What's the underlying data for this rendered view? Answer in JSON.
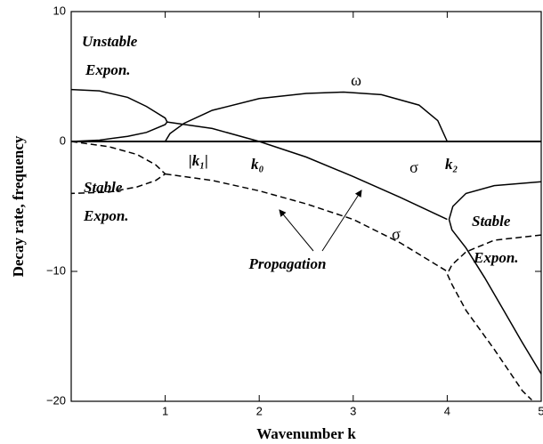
{
  "chart_data": {
    "type": "line",
    "xlabel": "Wavenumber k",
    "ylabel": "Decay rate, frequency",
    "xlim": [
      0,
      5
    ],
    "xticks": [
      1,
      2,
      3,
      4,
      5
    ],
    "ylim": [
      -20,
      10
    ],
    "yticks": [
      {
        "value": -20,
        "label": "−20"
      },
      {
        "value": -10,
        "label": "−10"
      },
      0,
      10
    ],
    "zero_line": true,
    "annotations": [
      "Unstable",
      "Expon.",
      "Stable",
      "Expon.",
      "Stable",
      "Expon.",
      "Propagation",
      "|k₁|",
      "k₀",
      "k₂",
      "ω",
      "σ",
      "σ"
    ],
    "series": [
      {
        "color": "#000000",
        "dashed": false,
        "x": [
          0,
          0.3,
          0.6,
          0.8,
          1.0,
          1.02,
          1.0,
          0.8,
          0.6,
          0.3,
          0
        ],
        "values": [
          0,
          0.1,
          0.4,
          0.7,
          1.3,
          1.5,
          1.8,
          2.7,
          3.4,
          3.9,
          4
        ]
      },
      {
        "color": "#000000",
        "dashed": false,
        "x": [
          1.0,
          1.05,
          1.2,
          1.5,
          2.0,
          2.5,
          2.9,
          3.3,
          3.7,
          3.9,
          4.0
        ],
        "values": [
          0,
          0.6,
          1.4,
          2.4,
          3.3,
          3.7,
          3.8,
          3.6,
          2.8,
          1.6,
          0
        ]
      },
      {
        "color": "#000000",
        "dashed": false,
        "x": [
          1.02,
          1.5,
          2.0,
          2.5,
          3.0,
          3.5,
          4.0
        ],
        "values": [
          1.5,
          1.0,
          0,
          -1.2,
          -2.7,
          -4.3,
          -6.0
        ]
      },
      {
        "color": "#000000",
        "dashed": false,
        "x": [
          5.0,
          4.5,
          4.2,
          4.06,
          4.02,
          4.05,
          4.2,
          4.4,
          4.6,
          4.8,
          5.0
        ],
        "values": [
          -3.1,
          -3.4,
          -4.0,
          -5.0,
          -6.0,
          -6.8,
          -8.2,
          -10.5,
          -13.0,
          -15.5,
          -17.9
        ]
      },
      {
        "color": "#000000",
        "dashed": true,
        "x": [
          0,
          0.4,
          0.7,
          0.9,
          1.0,
          0.9,
          0.7,
          0.4,
          0
        ],
        "values": [
          0,
          -0.4,
          -1.0,
          -1.8,
          -2.5,
          -3.0,
          -3.5,
          -3.9,
          -4.0
        ]
      },
      {
        "color": "#000000",
        "dashed": true,
        "x": [
          1.0,
          1.5,
          2.0,
          2.5,
          3.0,
          3.5,
          4.0
        ],
        "values": [
          -2.5,
          -3.0,
          -3.8,
          -4.8,
          -6.0,
          -7.8,
          -10.0
        ]
      },
      {
        "color": "#000000",
        "dashed": true,
        "x": [
          5.0,
          4.5,
          4.2,
          4.05,
          4.0,
          4.05,
          4.2,
          4.5,
          4.8,
          4.9
        ],
        "values": [
          -7.2,
          -7.6,
          -8.5,
          -9.5,
          -10.2,
          -11.0,
          -13.0,
          -16.0,
          -19.2,
          -19.9
        ]
      }
    ]
  }
}
